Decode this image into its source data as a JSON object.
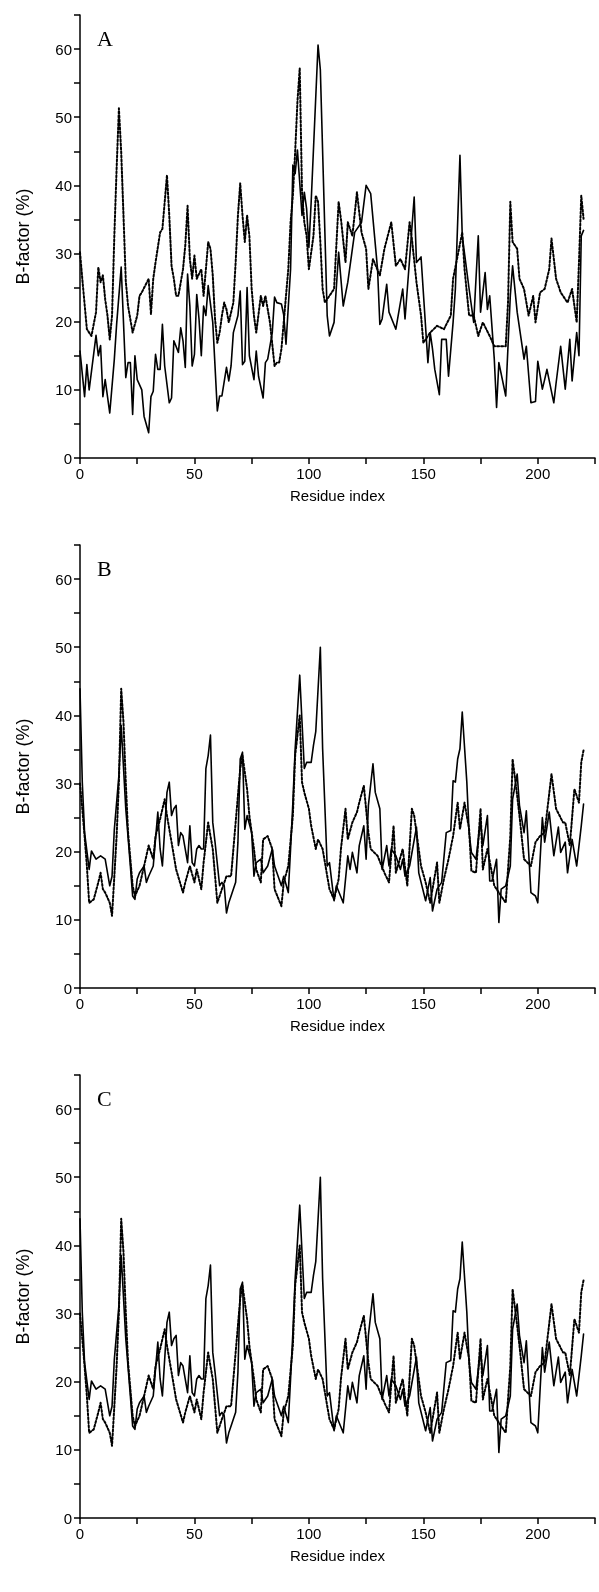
{
  "chart_data": [
    {
      "type": "line",
      "title": "A",
      "xlabel": "Residue index",
      "ylabel": "B-factor (%)",
      "marker": "none",
      "xlim": [
        0,
        225
      ],
      "ylim": [
        0,
        65
      ],
      "xticks": [
        0,
        {
          "value": 25,
          "label": null
        },
        50,
        {
          "value": 75,
          "label": null
        },
        100,
        {
          "value": 125,
          "label": null
        },
        150,
        {
          "value": 175,
          "label": null
        },
        200,
        {
          "value": 225,
          "label": null
        }
      ],
      "yticks": [
        0,
        {
          "value": 5,
          "label": null
        },
        10,
        {
          "value": 15,
          "label": null
        },
        20,
        {
          "value": 25,
          "label": null
        },
        30,
        {
          "value": 35,
          "label": null
        },
        40,
        {
          "value": 45,
          "label": null
        },
        50,
        {
          "value": 55,
          "label": null
        },
        60,
        {
          "value": 65,
          "label": null
        }
      ],
      "series": [
        {
          "color": "#000000",
          "line_style": "solid",
          "x": [
            0,
            2,
            3,
            4,
            7,
            8,
            9,
            10,
            11,
            13,
            15,
            16,
            18,
            20,
            21,
            22,
            23,
            24,
            25,
            27,
            28,
            30,
            31,
            32,
            33,
            34,
            35,
            36,
            37,
            39,
            40,
            41,
            43,
            44,
            45,
            46,
            47,
            48,
            49,
            50,
            51,
            52,
            53,
            54,
            55,
            56,
            58,
            60,
            61,
            62,
            64,
            65,
            66,
            67,
            69,
            70,
            71,
            72,
            73,
            74,
            76,
            77,
            78,
            80,
            81,
            82,
            84,
            85,
            86,
            88,
            89,
            90,
            92,
            93,
            94,
            95,
            97,
            98,
            99,
            100,
            101,
            104,
            105,
            108,
            109,
            111,
            113,
            115,
            117,
            120,
            123,
            125,
            127,
            130,
            131,
            132,
            134,
            135,
            138,
            141,
            142,
            144,
            146,
            147,
            149,
            152,
            153,
            154,
            155,
            157,
            158,
            160,
            161,
            163,
            164,
            166,
            167,
            170,
            172,
            174,
            175,
            177,
            178,
            179,
            181,
            182,
            183,
            186,
            188,
            189,
            191,
            194,
            195,
            197,
            199,
            200,
            202,
            203,
            204,
            207,
            208,
            210,
            212,
            214,
            215,
            217,
            218,
            219,
            220
          ],
          "values": [
            15.7,
            9,
            13.7,
            10,
            18,
            15,
            16.5,
            9,
            11.5,
            6.6,
            14.5,
            19.6,
            28,
            11.8,
            14,
            14,
            6.4,
            15,
            11.5,
            10,
            6.1,
            3.7,
            9,
            9.8,
            15.2,
            13,
            13,
            19.6,
            13.5,
            8.1,
            8.8,
            17.2,
            15.5,
            19.1,
            17.2,
            13.3,
            27,
            22.3,
            13.5,
            15.2,
            24,
            20.4,
            15,
            22.3,
            20.9,
            25.3,
            19.9,
            6.9,
            9.1,
            9.1,
            13.3,
            11.3,
            13.5,
            18.4,
            20.9,
            24.5,
            13.7,
            14.2,
            25,
            15,
            11.5,
            15.7,
            12,
            8.8,
            14,
            14.5,
            18.4,
            23.6,
            22.8,
            22.6,
            21,
            16.7,
            27.7,
            43,
            41.7,
            45.2,
            35.6,
            39,
            36.6,
            30.9,
            37.6,
            60.6,
            57,
            20.9,
            17.9,
            19.9,
            30.2,
            22.3,
            25.8,
            33.1,
            34.6,
            40,
            38.8,
            27.7,
            19.6,
            20.4,
            25.5,
            21.4,
            18.9,
            24.8,
            20.4,
            29.2,
            38.3,
            28.7,
            29.5,
            14,
            18.4,
            16,
            13,
            9.3,
            17.4,
            17.4,
            12,
            19.9,
            24.8,
            44.4,
            32.6,
            24.8,
            19.9,
            32.6,
            21.4,
            27.2,
            21.8,
            23.8,
            14.5,
            7.4,
            14,
            9.1,
            23.8,
            28.2,
            21.4,
            14.5,
            16.4,
            8.1,
            8.3,
            14.2,
            10.1,
            11.5,
            13,
            8.1,
            11,
            16.4,
            10.1,
            17.4,
            11.3,
            18.4,
            15,
            32.6,
            33.4
          ]
        },
        {
          "color": "#000000",
          "line_style": "dotted",
          "x": [
            0,
            1,
            2,
            3,
            5,
            7,
            8,
            9,
            10,
            11,
            12,
            13,
            14,
            15,
            16,
            17,
            18,
            19,
            20,
            21,
            23,
            25,
            26,
            27,
            30,
            31,
            32,
            33,
            35,
            36,
            38,
            39,
            40,
            41,
            42,
            43,
            45,
            46,
            47,
            48,
            49,
            50,
            51,
            53,
            54,
            55,
            56,
            57,
            58,
            59,
            60,
            61,
            62,
            63,
            64,
            65,
            67,
            68,
            69,
            70,
            71,
            72,
            73,
            74,
            75,
            76,
            77,
            79,
            80,
            81,
            83,
            85,
            86,
            87,
            88,
            90,
            91,
            92,
            93,
            94,
            95,
            96,
            97,
            98,
            99,
            100,
            102,
            103,
            104,
            105,
            106,
            107,
            111,
            113,
            114,
            116,
            117,
            119,
            121,
            123,
            125,
            126,
            128,
            131,
            133,
            136,
            138,
            140,
            142,
            144,
            145,
            147,
            149,
            150,
            153,
            156,
            159,
            162,
            163,
            165,
            167,
            168,
            170,
            172,
            174,
            176,
            179,
            181,
            183,
            186,
            187,
            188,
            189,
            191,
            192,
            194,
            196,
            198,
            199,
            201,
            203,
            205,
            206,
            208,
            210,
            213,
            215,
            217,
            218,
            219,
            220
          ],
          "values": [
            30.2,
            26.3,
            22.6,
            18.9,
            17.9,
            21.4,
            28,
            25.8,
            26.8,
            23.3,
            20.9,
            17.4,
            20.9,
            32.6,
            42.5,
            51.3,
            44.9,
            35.6,
            26,
            22.3,
            18.4,
            20.9,
            23.8,
            24.3,
            26.3,
            21.1,
            26.3,
            28.7,
            33.1,
            33.6,
            41.5,
            35.6,
            28.2,
            26.3,
            23.8,
            23.8,
            27.7,
            31.2,
            37,
            29.2,
            26.3,
            29.7,
            26.3,
            27.7,
            23.8,
            27.7,
            31.7,
            30.7,
            26.8,
            20.4,
            16.9,
            18.4,
            20.9,
            22.8,
            21.8,
            19.9,
            22.8,
            28.7,
            35.6,
            40.3,
            35.6,
            31.7,
            35.6,
            32.6,
            24.8,
            20.9,
            18.4,
            23.8,
            22.3,
            23.8,
            19.9,
            13.5,
            14,
            14,
            16,
            23.8,
            27.7,
            34.6,
            38.5,
            44.9,
            52.3,
            57.2,
            39,
            34.6,
            32.6,
            27.7,
            32.6,
            38.5,
            37.6,
            31.7,
            24.8,
            22.8,
            24.8,
            37.6,
            35.1,
            28.7,
            34.6,
            32.6,
            39,
            33.1,
            30.7,
            24.8,
            29.2,
            26.8,
            30.7,
            34.6,
            28.2,
            29.2,
            27.7,
            34.6,
            32.2,
            25.8,
            20.9,
            16.9,
            18.4,
            19.4,
            18.9,
            20.9,
            26.3,
            29.7,
            33.1,
            27.7,
            20.9,
            20.9,
            17.9,
            19.9,
            17.9,
            16.4,
            16.4,
            16.4,
            22.8,
            37.6,
            31.7,
            30.7,
            26.3,
            24.8,
            20.9,
            23.8,
            19.9,
            24.3,
            24.8,
            27.7,
            32.2,
            26.3,
            24.3,
            22.8,
            24.8,
            19.9,
            28.7,
            38.5,
            35.1
          ]
        }
      ]
    },
    {
      "type": "line",
      "title": "B",
      "xlabel": "Residue index",
      "ylabel": "B-factor (%)",
      "marker": "none",
      "xlim": [
        0,
        225
      ],
      "ylim": [
        0,
        65
      ],
      "xticks": [
        0,
        {
          "value": 25,
          "label": null
        },
        50,
        {
          "value": 75,
          "label": null
        },
        100,
        {
          "value": 125,
          "label": null
        },
        150,
        {
          "value": 175,
          "label": null
        },
        200,
        {
          "value": 225,
          "label": null
        }
      ],
      "yticks": [
        0,
        {
          "value": 5,
          "label": null
        },
        10,
        {
          "value": 15,
          "label": null
        },
        20,
        {
          "value": 25,
          "label": null
        },
        30,
        {
          "value": 35,
          "label": null
        },
        40,
        {
          "value": 45,
          "label": null
        },
        50,
        {
          "value": 55,
          "label": null
        },
        60,
        {
          "value": 65,
          "label": null
        }
      ],
      "series": [
        {
          "color": "#000000",
          "line_style": "solid",
          "x": [
            0,
            1,
            2,
            4,
            5,
            7,
            9,
            11,
            13,
            14,
            15,
            17,
            18,
            20,
            22,
            23,
            24,
            25,
            26,
            27,
            28,
            29,
            30,
            32,
            34,
            35,
            36,
            38,
            39,
            40,
            41,
            42,
            43,
            44,
            45,
            47,
            48,
            49,
            50,
            51,
            52,
            53,
            54,
            55,
            56,
            57,
            58,
            59,
            61,
            62,
            63,
            64,
            65,
            66,
            68,
            69,
            70,
            71,
            72,
            73,
            75,
            76,
            77,
            79,
            80,
            82,
            84,
            85,
            88,
            89,
            91,
            92,
            93,
            94,
            96,
            97,
            98,
            99,
            101,
            102,
            103,
            105,
            106,
            108,
            109,
            111,
            112,
            115,
            117,
            118,
            119,
            121,
            122,
            124,
            125,
            126,
            128,
            129,
            131,
            132,
            134,
            135,
            136,
            138,
            140,
            141,
            142,
            144,
            147,
            148,
            151,
            153,
            154,
            156,
            158,
            160,
            162,
            163,
            164,
            165,
            166,
            167,
            169,
            170,
            171,
            173,
            175,
            176,
            178,
            179,
            180,
            182,
            183,
            184,
            186,
            188,
            189,
            191,
            192,
            194,
            195,
            197,
            199,
            200,
            202,
            203,
            205,
            207,
            209,
            210,
            212,
            213,
            215,
            217,
            219,
            220
          ],
          "values": [
            43.9,
            30.2,
            22.8,
            17.4,
            20.1,
            18.9,
            19.4,
            18.9,
            15,
            16.4,
            23.3,
            31.2,
            38.5,
            26.3,
            17.9,
            13.5,
            13,
            16,
            16.9,
            17.4,
            17.9,
            15.5,
            16.4,
            17.9,
            25.8,
            20.4,
            17.9,
            28.7,
            30.2,
            25.3,
            26.3,
            26.8,
            20.9,
            22.8,
            22.3,
            18.4,
            23.8,
            18.4,
            17.9,
            20.4,
            20.9,
            20.4,
            20.4,
            32.2,
            34.1,
            37.1,
            24.3,
            21.4,
            15,
            15.5,
            15,
            11,
            12.5,
            13.5,
            15.5,
            21.4,
            33.6,
            34.6,
            23.3,
            25.3,
            22.8,
            16.4,
            18.4,
            18.9,
            16.9,
            17.9,
            20.4,
            17.9,
            15,
            16.4,
            14,
            20.4,
            27.2,
            35.1,
            45.9,
            39,
            32.2,
            33.1,
            33.1,
            35.6,
            37.6,
            50,
            35.1,
            17.9,
            18.4,
            12.8,
            15,
            12.5,
            19.4,
            17.4,
            19.9,
            16.9,
            20.9,
            23.8,
            18.9,
            26.8,
            32.9,
            28.7,
            26.3,
            17.4,
            20.9,
            17.9,
            20.4,
            19.4,
            17.4,
            18.9,
            16.4,
            17.9,
            23.6,
            16.9,
            12.8,
            16.2,
            11.3,
            14.5,
            15.5,
            22.8,
            23.1,
            30.4,
            30.2,
            33.6,
            35.1,
            40.5,
            30.2,
            22.8,
            19.9,
            18.9,
            24.5,
            20.9,
            25.3,
            15.7,
            15.7,
            18.9,
            9.6,
            14.5,
            15,
            17.9,
            27.7,
            31.4,
            26.8,
            22.8,
            26,
            14,
            13.5,
            12.5,
            25,
            21.4,
            25.8,
            19.4,
            23.6,
            19.9,
            21.4,
            16.9,
            21.8,
            17.9,
            23.8,
            27
          ]
        },
        {
          "color": "#000000",
          "line_style": "dotted",
          "x": [
            0,
            1,
            2,
            3,
            4,
            6,
            8,
            9,
            10,
            11,
            13,
            14,
            15,
            16,
            17,
            18,
            19,
            20,
            21,
            23,
            24,
            26,
            28,
            30,
            32,
            33,
            35,
            37,
            38,
            40,
            41,
            42,
            45,
            46,
            48,
            50,
            51,
            53,
            54,
            56,
            57,
            58,
            60,
            62,
            64,
            66,
            68,
            70,
            71,
            73,
            74,
            76,
            77,
            79,
            80,
            82,
            84,
            85,
            88,
            89,
            91,
            93,
            94,
            96,
            97,
            98,
            100,
            101,
            103,
            104,
            106,
            109,
            111,
            113,
            114,
            116,
            117,
            119,
            121,
            122,
            124,
            126,
            127,
            130,
            133,
            135,
            137,
            138,
            141,
            143,
            145,
            146,
            149,
            151,
            153,
            154,
            156,
            157,
            159,
            161,
            163,
            165,
            166,
            168,
            170,
            171,
            173,
            175,
            176,
            178,
            181,
            186,
            188,
            189,
            191,
            192,
            194,
            197,
            199,
            201,
            203,
            206,
            208,
            211,
            212,
            214,
            216,
            218,
            219,
            220
          ],
          "values": [
            30,
            26.3,
            22.3,
            17.9,
            12.5,
            13,
            15.5,
            16.9,
            14.5,
            14,
            12.5,
            10.6,
            16.4,
            22.3,
            30.2,
            43.9,
            39,
            30.2,
            22.8,
            15,
            13.5,
            15,
            17.9,
            20.9,
            18.9,
            22.3,
            24.8,
            27.7,
            25.3,
            21.4,
            19.4,
            17.4,
            14,
            15.5,
            17.9,
            15.5,
            17.4,
            14.5,
            18.4,
            24.3,
            22.3,
            20.4,
            12.5,
            14.5,
            16.4,
            16.4,
            24.3,
            32.2,
            34.1,
            29.2,
            25.3,
            20.4,
            17.4,
            15.5,
            21.8,
            22.3,
            20.4,
            14.5,
            12,
            15.5,
            17.9,
            25.3,
            34.1,
            40,
            30.2,
            28.7,
            26.3,
            23.8,
            20.4,
            21.8,
            20.4,
            14.5,
            13,
            16,
            20.4,
            26.3,
            21.8,
            24.3,
            25.8,
            27.2,
            29.7,
            22.8,
            20.4,
            19.4,
            16.9,
            15.5,
            23.8,
            16.9,
            20.4,
            15,
            26.3,
            25.3,
            17.9,
            15.5,
            12.5,
            14.5,
            18.4,
            12.5,
            16,
            18.9,
            22.3,
            27.2,
            23.3,
            27.2,
            23.3,
            17.2,
            16.9,
            26.3,
            17.4,
            20.4,
            15,
            12.5,
            22.3,
            33.6,
            28.2,
            25.3,
            18.9,
            17.9,
            21.4,
            22.3,
            22.8,
            31.4,
            26.3,
            24.3,
            24.3,
            20.9,
            29.2,
            27.2,
            33.1,
            34.9
          ]
        }
      ]
    },
    {
      "type": "line",
      "title": "C",
      "xlabel": "Residue index",
      "ylabel": "B-factor (%)",
      "marker": "none",
      "xlim": [
        0,
        225
      ],
      "ylim": [
        0,
        65
      ],
      "xticks": [
        0,
        {
          "value": 25,
          "label": null
        },
        50,
        {
          "value": 75,
          "label": null
        },
        100,
        {
          "value": 125,
          "label": null
        },
        150,
        {
          "value": 175,
          "label": null
        },
        200,
        {
          "value": 225,
          "label": null
        }
      ],
      "yticks": [
        0,
        {
          "value": 5,
          "label": null
        },
        10,
        {
          "value": 15,
          "label": null
        },
        20,
        {
          "value": 25,
          "label": null
        },
        30,
        {
          "value": 35,
          "label": null
        },
        40,
        {
          "value": 45,
          "label": null
        },
        50,
        {
          "value": 55,
          "label": null
        },
        60,
        {
          "value": 65,
          "label": null
        }
      ],
      "series": [
        {
          "color": "#000000",
          "line_style": "solid",
          "x": [
            0,
            1,
            2,
            4,
            5,
            7,
            9,
            11,
            13,
            14,
            15,
            17,
            18,
            20,
            22,
            23,
            24,
            25,
            26,
            27,
            28,
            29,
            30,
            32,
            34,
            35,
            36,
            38,
            39,
            40,
            41,
            42,
            43,
            44,
            45,
            47,
            48,
            49,
            50,
            51,
            52,
            53,
            54,
            55,
            56,
            57,
            58,
            59,
            61,
            62,
            63,
            64,
            65,
            66,
            68,
            69,
            70,
            71,
            72,
            73,
            75,
            76,
            77,
            79,
            80,
            82,
            84,
            85,
            88,
            89,
            91,
            92,
            93,
            94,
            96,
            97,
            98,
            99,
            101,
            102,
            103,
            105,
            106,
            108,
            109,
            111,
            112,
            115,
            117,
            118,
            119,
            121,
            122,
            124,
            125,
            126,
            128,
            129,
            131,
            132,
            134,
            135,
            136,
            138,
            140,
            141,
            142,
            144,
            147,
            148,
            151,
            153,
            154,
            156,
            158,
            160,
            162,
            163,
            164,
            165,
            166,
            167,
            169,
            170,
            171,
            173,
            175,
            176,
            178,
            179,
            180,
            182,
            183,
            184,
            186,
            188,
            189,
            191,
            192,
            194,
            195,
            197,
            199,
            200,
            202,
            203,
            205,
            207,
            209,
            210,
            212,
            213,
            215,
            217,
            219,
            220
          ],
          "values": [
            43.9,
            30.2,
            22.8,
            17.4,
            20.1,
            18.9,
            19.4,
            18.9,
            15,
            16.4,
            23.3,
            31.2,
            38.5,
            26.3,
            17.9,
            13.5,
            13,
            16,
            16.9,
            17.4,
            17.9,
            15.5,
            16.4,
            17.9,
            25.8,
            20.4,
            17.9,
            28.7,
            30.2,
            25.3,
            26.3,
            26.8,
            20.9,
            22.8,
            22.3,
            18.4,
            23.8,
            18.4,
            17.9,
            20.4,
            20.9,
            20.4,
            20.4,
            32.2,
            34.1,
            37.1,
            24.3,
            21.4,
            15,
            15.5,
            15,
            11,
            12.5,
            13.5,
            15.5,
            21.4,
            33.6,
            34.6,
            23.3,
            25.3,
            22.8,
            16.4,
            18.4,
            18.9,
            16.9,
            17.9,
            20.4,
            17.9,
            15,
            16.4,
            14,
            20.4,
            27.2,
            35.1,
            45.9,
            39,
            32.2,
            33.1,
            33.1,
            35.6,
            37.6,
            50,
            35.1,
            17.9,
            18.4,
            12.8,
            15,
            12.5,
            19.4,
            17.4,
            19.9,
            16.9,
            20.9,
            23.8,
            18.9,
            26.8,
            32.9,
            28.7,
            26.3,
            17.4,
            20.9,
            17.9,
            20.4,
            19.4,
            17.4,
            18.9,
            16.4,
            17.9,
            23.6,
            16.9,
            12.8,
            16.2,
            11.3,
            14.5,
            15.5,
            22.8,
            23.1,
            30.4,
            30.2,
            33.6,
            35.1,
            40.5,
            30.2,
            22.8,
            19.9,
            18.9,
            24.5,
            20.9,
            25.3,
            15.7,
            15.7,
            18.9,
            9.6,
            14.5,
            15,
            17.9,
            27.7,
            31.4,
            26.8,
            22.8,
            26,
            14,
            13.5,
            12.5,
            25,
            21.4,
            25.8,
            19.4,
            23.6,
            19.9,
            21.4,
            16.9,
            21.8,
            17.9,
            23.8,
            27
          ]
        },
        {
          "color": "#000000",
          "line_style": "dotted",
          "x": [
            0,
            1,
            2,
            3,
            4,
            6,
            8,
            9,
            10,
            11,
            13,
            14,
            15,
            16,
            17,
            18,
            19,
            20,
            21,
            23,
            24,
            26,
            28,
            30,
            32,
            33,
            35,
            37,
            38,
            40,
            41,
            42,
            45,
            46,
            48,
            50,
            51,
            53,
            54,
            56,
            57,
            58,
            60,
            62,
            64,
            66,
            68,
            70,
            71,
            73,
            74,
            76,
            77,
            79,
            80,
            82,
            84,
            85,
            88,
            89,
            91,
            93,
            94,
            96,
            97,
            98,
            100,
            101,
            103,
            104,
            106,
            109,
            111,
            113,
            114,
            116,
            117,
            119,
            121,
            122,
            124,
            126,
            127,
            130,
            133,
            135,
            137,
            138,
            141,
            143,
            145,
            146,
            149,
            151,
            153,
            154,
            156,
            157,
            159,
            161,
            163,
            165,
            166,
            168,
            170,
            171,
            173,
            175,
            176,
            178,
            181,
            186,
            188,
            189,
            191,
            192,
            194,
            197,
            199,
            201,
            203,
            206,
            208,
            211,
            212,
            214,
            216,
            218,
            219,
            220
          ],
          "values": [
            30,
            26.3,
            22.3,
            17.9,
            12.5,
            13,
            15.5,
            16.9,
            14.5,
            14,
            12.5,
            10.6,
            16.4,
            22.3,
            30.2,
            43.9,
            39,
            30.2,
            22.8,
            15,
            13.5,
            15,
            17.9,
            20.9,
            18.9,
            22.3,
            24.8,
            27.7,
            25.3,
            21.4,
            19.4,
            17.4,
            14,
            15.5,
            17.9,
            15.5,
            17.4,
            14.5,
            18.4,
            24.3,
            22.3,
            20.4,
            12.5,
            14.5,
            16.4,
            16.4,
            24.3,
            32.2,
            34.1,
            29.2,
            25.3,
            20.4,
            17.4,
            15.5,
            21.8,
            22.3,
            20.4,
            14.5,
            12,
            15.5,
            17.9,
            25.3,
            34.1,
            40,
            30.2,
            28.7,
            26.3,
            23.8,
            20.4,
            21.8,
            20.4,
            14.5,
            13,
            16,
            20.4,
            26.3,
            21.8,
            24.3,
            25.8,
            27.2,
            29.7,
            22.8,
            20.4,
            19.4,
            16.9,
            15.5,
            23.8,
            16.9,
            20.4,
            15,
            26.3,
            25.3,
            17.9,
            15.5,
            12.5,
            14.5,
            18.4,
            12.5,
            16,
            18.9,
            22.3,
            27.2,
            23.3,
            27.2,
            23.3,
            17.2,
            16.9,
            26.3,
            17.4,
            20.4,
            15,
            12.5,
            22.3,
            33.6,
            28.2,
            25.3,
            18.9,
            17.9,
            21.4,
            22.3,
            22.8,
            31.4,
            26.3,
            24.3,
            24.3,
            20.9,
            29.2,
            27.2,
            33.1,
            34.9
          ]
        }
      ]
    }
  ]
}
